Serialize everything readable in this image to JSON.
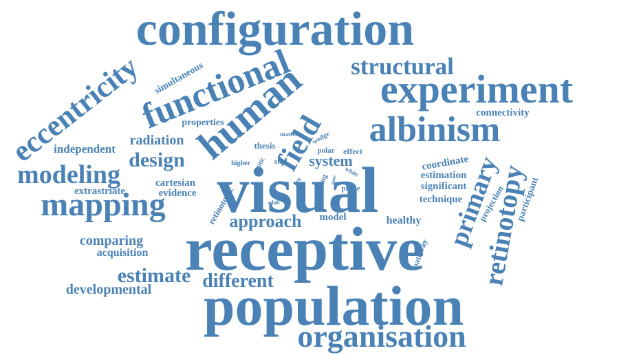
{
  "colors": {
    "word": "#4a82b5",
    "background": "#ffffff"
  },
  "words": {
    "configuration": "configuration",
    "experiment": "experiment",
    "structural": "structural",
    "functional": "functional",
    "eccentricity": "eccentricity",
    "simultaneous": "simultaneous",
    "human": "human",
    "albinism": "albinism",
    "connectivity": "connectivity",
    "properties": "properties",
    "radiation": "radiation",
    "independent": "independent",
    "design": "design",
    "field": "field",
    "matter": "matter",
    "thesis": "thesis",
    "wedge": "wedge",
    "polar": "polar",
    "effect": "effect",
    "optic": "optic",
    "higher": "higher",
    "size": "size",
    "system": "system",
    "white": "white",
    "modeling": "modeling",
    "visual": "visual",
    "primary": "primary",
    "coordinate": "coordinate",
    "estimation": "estimation",
    "significant": "significant",
    "technique": "technique",
    "retinotopy": "retinotopy",
    "projection": "projection",
    "participant": "participant",
    "extrastriate": "extrastriate",
    "cartesian": "cartesian",
    "evidence": "evidence",
    "mapping": "mapping",
    "retinotopic": "retinotopic",
    "adult": "adult",
    "input_output": "input output",
    "ring": "ring",
    "scaling": "scaling",
    "time": "time",
    "phase": "phase",
    "model": "model",
    "healthy": "healthy",
    "approach": "approach",
    "comparing": "comparing",
    "acquisition": "acquisition",
    "receptive": "receptive",
    "pathway": "pathway",
    "estimate": "estimate",
    "different": "different",
    "developmental": "developmental",
    "population": "population",
    "organisation": "organisation"
  }
}
